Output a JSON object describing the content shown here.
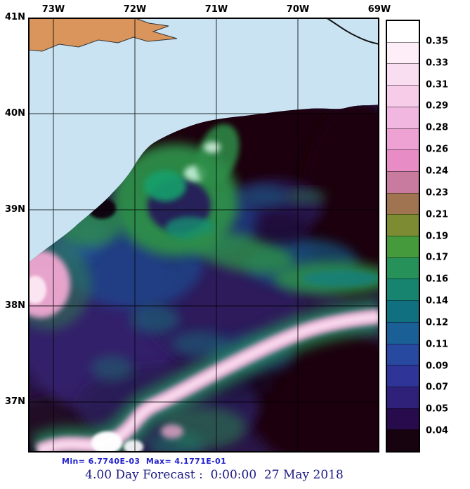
{
  "title": "4.00 Day Forecast :  0:00:00  27 May 2018",
  "stats_line": "Min= 6.7740E-03  Max= 4.1771E-01",
  "axes": {
    "lon_ticks": [
      "73W",
      "72W",
      "71W",
      "70W",
      "69W"
    ],
    "lat_ticks": [
      "41N",
      "40N",
      "39N",
      "38N",
      "37N"
    ]
  },
  "colorbar": {
    "labels": [
      "0.35",
      "0.33",
      "0.31",
      "0.29",
      "0.28",
      "0.26",
      "0.24",
      "0.23",
      "0.21",
      "0.19",
      "0.17",
      "0.16",
      "0.14",
      "0.12",
      "0.11",
      "0.09",
      "0.07",
      "0.05",
      "0.04"
    ],
    "colors": [
      "#ffffff",
      "#fdeef8",
      "#f9def1",
      "#f6cce9",
      "#f2b7e0",
      "#eda2d3",
      "#e78cc4",
      "#c87b9e",
      "#a07450",
      "#7d8c33",
      "#459a3c",
      "#27915a",
      "#16846e",
      "#10707f",
      "#1b5f97",
      "#27499f",
      "#2f3598",
      "#2f2079",
      "#270b4d",
      "#16030f"
    ]
  },
  "chart_data": {
    "type": "heatmap",
    "title": "4.00 Day Forecast :  0:00:00  27 May 2018",
    "x_ticks": [
      "73W",
      "72W",
      "71W",
      "70W",
      "69W"
    ],
    "y_ticks": [
      "41N",
      "40N",
      "39N",
      "38N",
      "37N"
    ],
    "colorbar_levels": [
      0.04,
      0.05,
      0.07,
      0.09,
      0.11,
      0.12,
      0.14,
      0.16,
      0.17,
      0.19,
      0.21,
      0.23,
      0.24,
      0.26,
      0.28,
      0.29,
      0.31,
      0.33,
      0.35
    ],
    "colorbar_colors_low_to_high": [
      "#16030f",
      "#270b4d",
      "#2f2079",
      "#2f3598",
      "#27499f",
      "#1b5f97",
      "#10707f",
      "#16846e",
      "#27915a",
      "#459a3c",
      "#7d8c33",
      "#a07450",
      "#c87b9e",
      "#e78cc4",
      "#eda2d3",
      "#f2b7e0",
      "#f6cce9",
      "#f9def1",
      "#fdeef8",
      "#ffffff"
    ],
    "min_label": "Min= 6.7740E-03",
    "max_label": "Max= 4.1771E-01",
    "min_value": 0.006774,
    "max_value": 0.41771,
    "legend_position": "right",
    "grid": true,
    "region": "Ocean field 73W-69W, 37N-41N; land in northwest corner; dark (low) water offshore with green eddy near 72W 39N and bright pink/white front band along ~38N"
  }
}
